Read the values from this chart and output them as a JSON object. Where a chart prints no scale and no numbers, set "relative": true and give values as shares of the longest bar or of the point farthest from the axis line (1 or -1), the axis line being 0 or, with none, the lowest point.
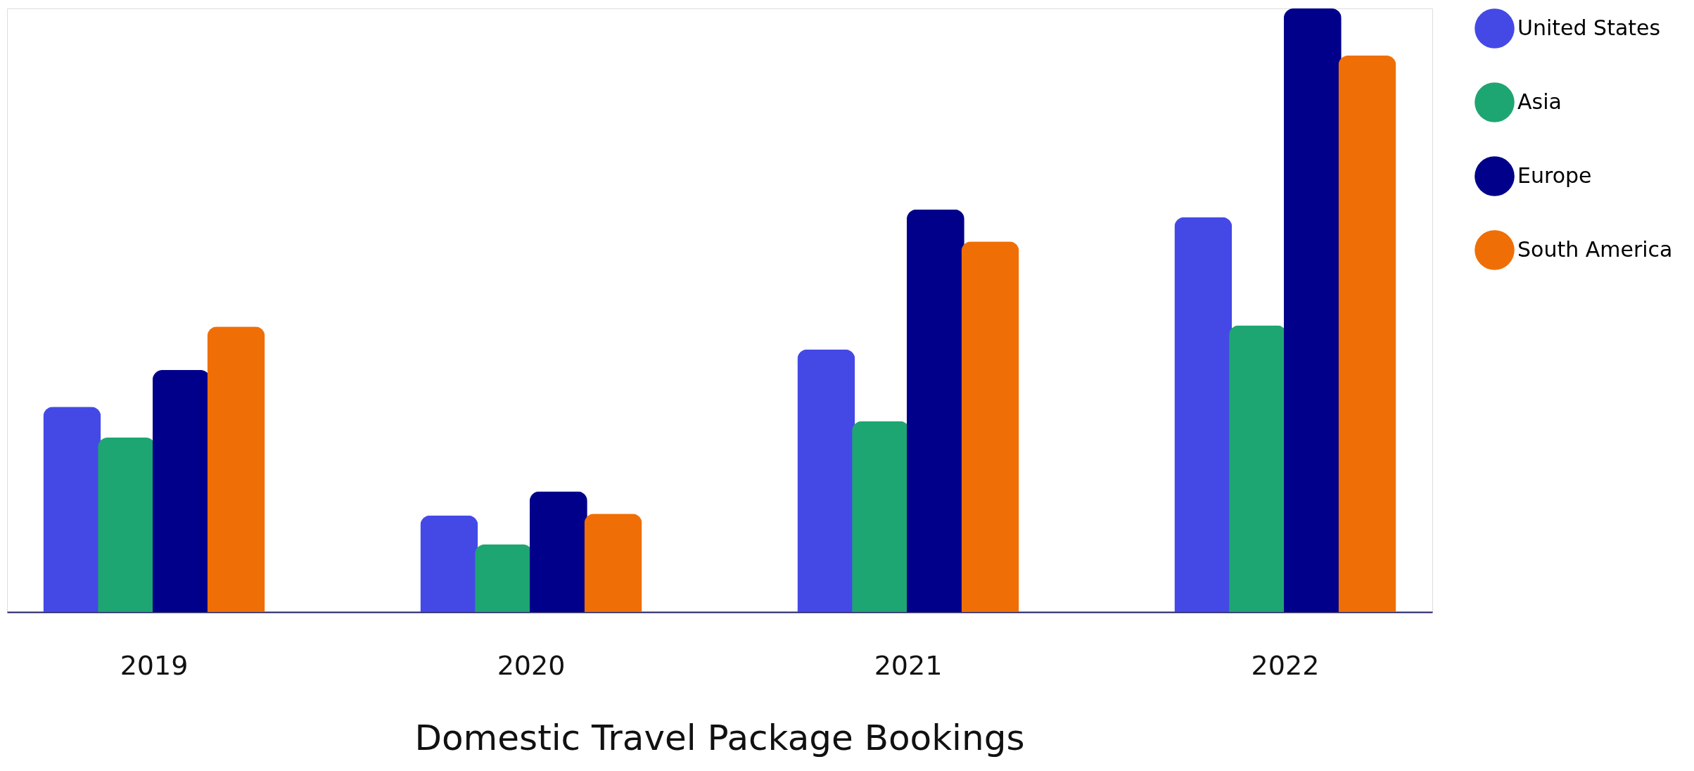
{
  "chart_data": {
    "type": "bar",
    "title": "Domestic Travel Package Bookings",
    "categories": [
      "2019",
      "2020",
      "2021",
      "2022"
    ],
    "relative": true,
    "legend": "right",
    "grid": false,
    "series": [
      {
        "name": "United States",
        "color": "#4449e6",
        "values": [
          0.34,
          0.16,
          0.435,
          0.654
        ]
      },
      {
        "name": "Asia",
        "color": "#1ea672",
        "values": [
          0.289,
          0.112,
          0.316,
          0.475
        ]
      },
      {
        "name": "Europe",
        "color": "#00008b",
        "values": [
          0.401,
          0.2,
          0.667,
          1
        ]
      },
      {
        "name": "South America",
        "color": "#ef6f06",
        "values": [
          0.473,
          0.163,
          0.614,
          0.922
        ]
      }
    ]
  }
}
